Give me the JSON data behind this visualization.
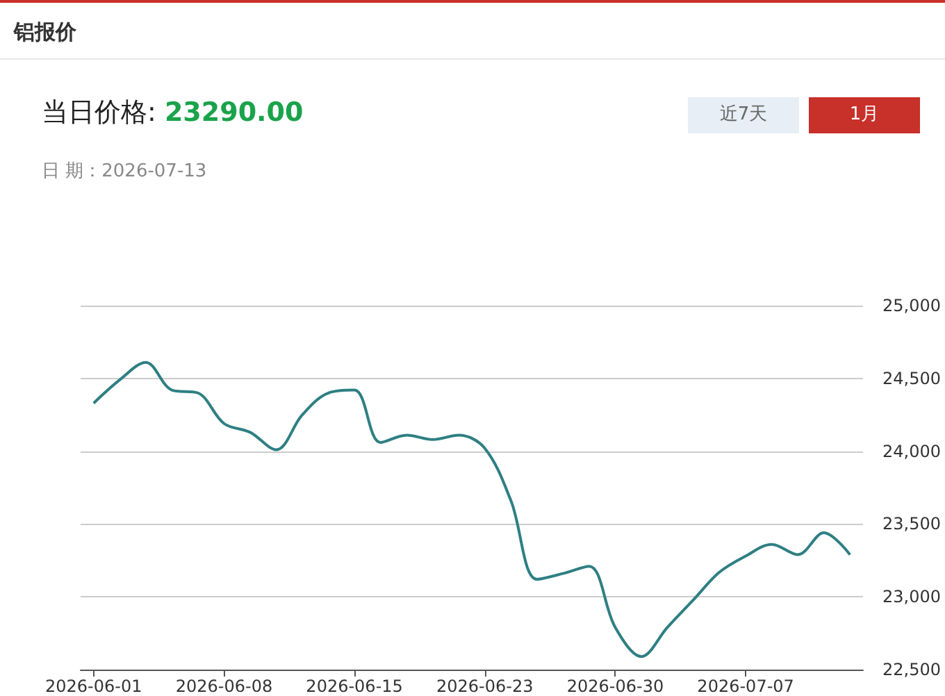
{
  "chart_data": {
    "type": "line",
    "title": "铝报价",
    "annotations": [
      "当日价格:",
      "23290.00",
      "日 期：2026-07-13",
      "近7天",
      "1月"
    ],
    "categories": [
      "2026-06-01",
      null,
      null,
      null,
      null,
      "2026-06-08",
      null,
      null,
      null,
      null,
      "2026-06-15",
      null,
      null,
      null,
      null,
      "2026-06-23",
      null,
      null,
      null,
      null,
      "2026-06-30",
      null,
      null,
      null,
      null,
      "2026-07-07",
      null,
      null,
      null,
      null
    ],
    "series": [
      {
        "color": "#2e7f82",
        "values": [
          24330,
          24490,
          24610,
          24420,
          24400,
          24190,
          24130,
          24010,
          24250,
          24400,
          24420,
          24060,
          24110,
          24080,
          24110,
          24020,
          23660,
          23120,
          23160,
          23210,
          22790,
          22590,
          22790,
          22980,
          23170,
          23280,
          23360,
          23290,
          23440,
          23290
        ]
      }
    ],
    "ylim": [
      22500,
      25000
    ],
    "yticks": [
      {
        "value": 22500,
        "label": "22,500"
      },
      {
        "value": 23000,
        "label": "23,000"
      },
      {
        "value": 23500,
        "label": "23,500"
      },
      {
        "value": 24000,
        "label": "24,000"
      },
      {
        "value": 24500,
        "label": "24,500"
      },
      {
        "value": 25000,
        "label": "25,000"
      }
    ],
    "grid": "y"
  }
}
